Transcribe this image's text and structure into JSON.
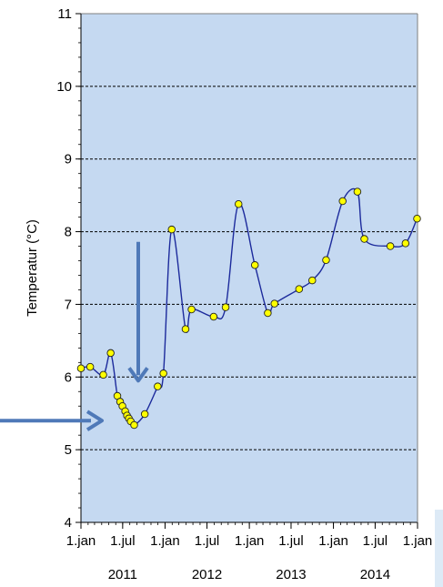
{
  "chart_data": {
    "type": "line",
    "ylabel": "Temperatur (°C)",
    "ylim": [
      4,
      11
    ],
    "yticks": [
      4,
      5,
      6,
      7,
      8,
      9,
      10,
      11
    ],
    "grid": "horizontal dashed",
    "xlim": [
      "2011-01-01",
      "2015-01-01"
    ],
    "x_tick_labels": [
      "1.jan",
      "1.jul",
      "1.jan",
      "1.jul",
      "1.jan",
      "1.jul",
      "1.jan",
      "1.jul",
      "1.jan"
    ],
    "x_tick_dates": [
      "2011-01-01",
      "2011-07-01",
      "2012-01-01",
      "2012-07-01",
      "2013-01-01",
      "2013-07-01",
      "2014-01-01",
      "2014-07-01",
      "2015-01-01"
    ],
    "year_labels": [
      {
        "text": "2011",
        "center": "2011-07-01"
      },
      {
        "text": "2012",
        "center": "2012-07-01"
      },
      {
        "text": "2013",
        "center": "2013-07-01"
      },
      {
        "text": "2014",
        "center": "2014-07-01"
      }
    ],
    "series": [
      {
        "color": "#1c2a9c",
        "marker_color": "#ffff00",
        "points": [
          [
            "2011-01-01",
            6.12
          ],
          [
            "2011-02-10",
            6.14
          ],
          [
            "2011-04-08",
            6.03
          ],
          [
            "2011-05-10",
            6.33
          ],
          [
            "2011-06-08",
            5.74
          ],
          [
            "2011-06-20",
            5.66
          ],
          [
            "2011-06-30",
            5.6
          ],
          [
            "2011-07-12",
            5.53
          ],
          [
            "2011-07-20",
            5.47
          ],
          [
            "2011-07-28",
            5.43
          ],
          [
            "2011-08-05",
            5.39
          ],
          [
            "2011-08-20",
            5.34
          ],
          [
            "2011-10-05",
            5.49
          ],
          [
            "2011-11-30",
            5.87
          ],
          [
            "2011-12-25",
            6.05
          ],
          [
            "2012-01-30",
            8.03
          ],
          [
            "2012-03-30",
            6.66
          ],
          [
            "2012-04-25",
            6.93
          ],
          [
            "2012-07-30",
            6.83
          ],
          [
            "2012-09-20",
            6.96
          ],
          [
            "2012-11-15",
            8.38
          ],
          [
            "2013-01-25",
            7.54
          ],
          [
            "2013-03-22",
            6.88
          ],
          [
            "2013-04-20",
            7.01
          ],
          [
            "2013-08-05",
            7.21
          ],
          [
            "2013-10-01",
            7.33
          ],
          [
            "2013-11-30",
            7.61
          ],
          [
            "2014-02-10",
            8.42
          ],
          [
            "2014-04-15",
            8.55
          ],
          [
            "2014-05-15",
            7.9
          ],
          [
            "2014-09-05",
            7.8
          ],
          [
            "2014-11-10",
            7.84
          ],
          [
            "2014-12-30",
            8.18
          ]
        ]
      }
    ],
    "annotations": [
      "horizontal arrow pointing right at 5.4",
      "vertical arrow pointing down toward 5.9"
    ]
  }
}
